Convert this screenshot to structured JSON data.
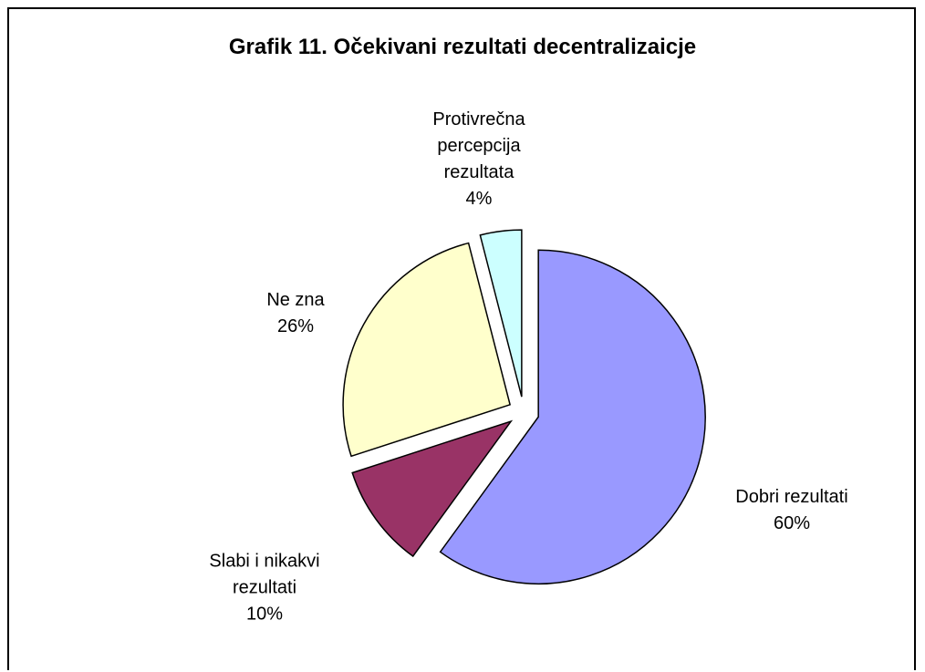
{
  "chart_data": {
    "type": "pie",
    "title": "Grafik 11. Očekivani rezultati decentralizaicje",
    "categories": [
      "Dobri rezultati",
      "Slabi i nikakvi rezultati",
      "Ne zna",
      "Protivrečna percepcija rezultata"
    ],
    "values": [
      60,
      10,
      26,
      4
    ],
    "value_labels": [
      "60%",
      "10%",
      "26%",
      "4%"
    ],
    "colors": [
      "#9999ff",
      "#993366",
      "#ffffcc",
      "#ccffff"
    ]
  }
}
